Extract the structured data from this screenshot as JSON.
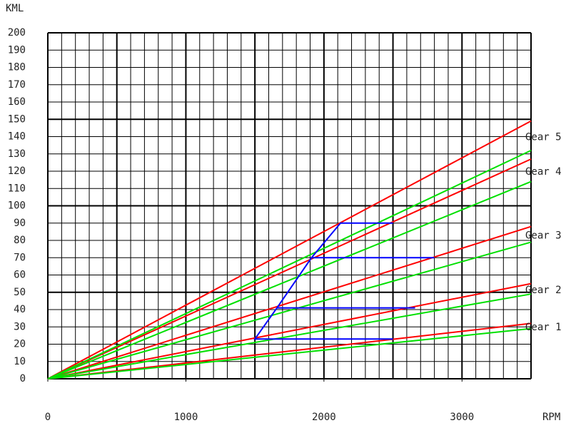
{
  "chart_data": {
    "type": "line",
    "y_label": "KML",
    "x_label": "RPM",
    "xlim": [
      0,
      3500
    ],
    "ylim": [
      0,
      200
    ],
    "xticks": [
      0,
      1000,
      2000,
      3000
    ],
    "yticks": [
      0,
      10,
      20,
      30,
      40,
      50,
      60,
      70,
      80,
      90,
      100,
      110,
      120,
      130,
      140,
      150,
      160,
      170,
      180,
      190,
      200
    ],
    "grid": true,
    "series": [
      {
        "name": "Gear 1",
        "color": "#ff0000",
        "x": [
          0,
          3500
        ],
        "values": [
          0,
          32
        ]
      },
      {
        "color": "#00e000",
        "x": [
          0,
          3500
        ],
        "values": [
          0,
          29
        ]
      },
      {
        "name": "Gear 2",
        "color": "#ff0000",
        "x": [
          0,
          3500
        ],
        "values": [
          0,
          55
        ]
      },
      {
        "color": "#00e000",
        "x": [
          0,
          3500
        ],
        "values": [
          0,
          49
        ]
      },
      {
        "name": "Gear 3",
        "color": "#ff0000",
        "x": [
          0,
          3500
        ],
        "values": [
          0,
          88
        ]
      },
      {
        "color": "#00e000",
        "x": [
          0,
          3500
        ],
        "values": [
          0,
          79
        ]
      },
      {
        "name": "Gear 4",
        "color": "#ff0000",
        "x": [
          0,
          3500
        ],
        "values": [
          0,
          127
        ]
      },
      {
        "color": "#00e000",
        "x": [
          0,
          3500
        ],
        "values": [
          0,
          114
        ]
      },
      {
        "name": "Gear 5",
        "color": "#ff0000",
        "x": [
          0,
          3500
        ],
        "values": [
          0,
          149
        ]
      },
      {
        "color": "#00e000",
        "x": [
          0,
          3500
        ],
        "values": [
          0,
          132
        ]
      },
      {
        "color": "#0000ff",
        "x": [
          2500,
          1500,
          1660,
          1910,
          2120,
          2500,
          null,
          1660,
          2660,
          null,
          1910,
          2800
        ],
        "values": [
          23,
          23,
          41,
          70,
          90,
          90,
          null,
          41,
          41,
          null,
          70,
          70
        ]
      }
    ]
  }
}
